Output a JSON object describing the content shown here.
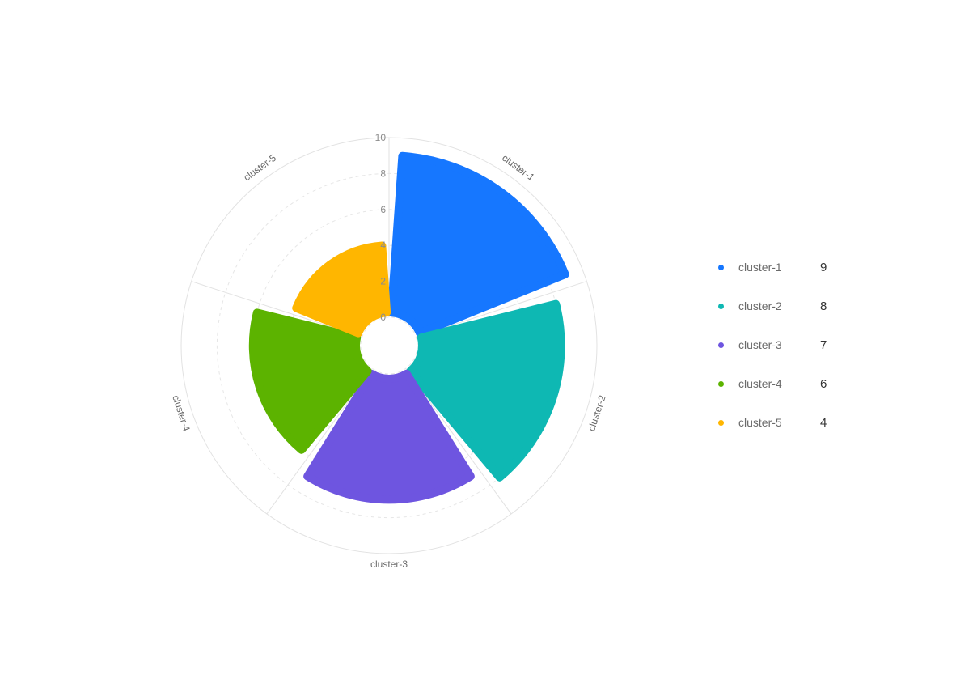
{
  "chart_data": {
    "type": "radial-bar",
    "categories": [
      "cluster-1",
      "cluster-2",
      "cluster-3",
      "cluster-4",
      "cluster-5"
    ],
    "values": [
      9,
      8,
      7,
      6,
      4
    ],
    "colors": [
      "#1677ff",
      "#0eb8b3",
      "#6e55e0",
      "#5cb300",
      "#ffb600"
    ],
    "radial_ticks": [
      "0",
      "2",
      "4",
      "6",
      "8",
      "10"
    ],
    "rlim": [
      0,
      10
    ],
    "grid": true,
    "legend_position": "right"
  },
  "legend": {
    "items": [
      {
        "name": "cluster-1",
        "value": "9",
        "color": "#1677ff"
      },
      {
        "name": "cluster-2",
        "value": "8",
        "color": "#0eb8b3"
      },
      {
        "name": "cluster-3",
        "value": "7",
        "color": "#6e55e0"
      },
      {
        "name": "cluster-4",
        "value": "6",
        "color": "#5cb300"
      },
      {
        "name": "cluster-5",
        "value": "4",
        "color": "#ffb600"
      }
    ]
  }
}
